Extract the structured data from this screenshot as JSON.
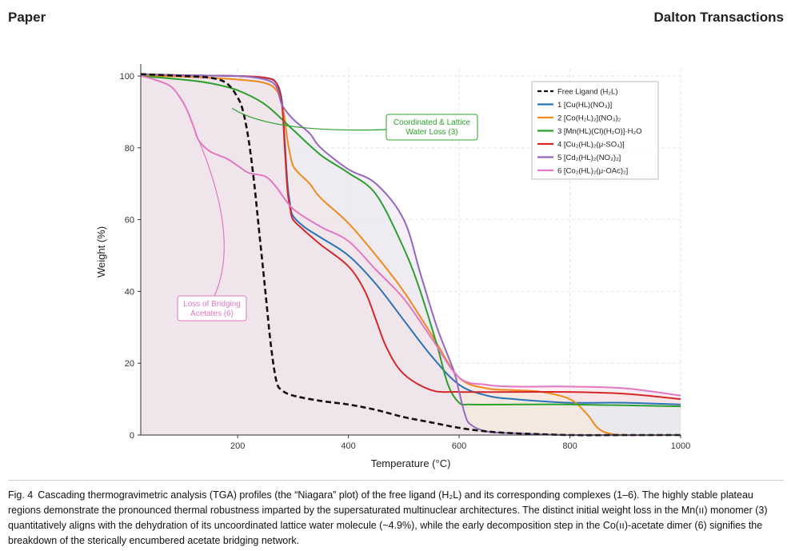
{
  "header": {
    "left": "Paper",
    "right": "Dalton Transactions"
  },
  "chart_data": {
    "type": "line",
    "title": "",
    "xlabel": "Temperature (°C)",
    "ylabel": "Weight (%)",
    "xlim": [
      25,
      1000
    ],
    "ylim": [
      0,
      102
    ],
    "xticks": [
      200,
      400,
      600,
      800,
      1000
    ],
    "yticks": [
      0,
      20,
      40,
      60,
      80,
      100
    ],
    "grid": true,
    "legend_position": "top-right",
    "series": [
      {
        "name": "Free Ligand (H₂L)",
        "color": "#111111",
        "dashed": true,
        "fill": "#d5c3c5",
        "x": [
          25,
          100,
          150,
          180,
          200,
          210,
          220,
          230,
          240,
          250,
          260,
          270,
          280,
          300,
          350,
          400,
          450,
          500,
          550,
          600,
          650,
          700,
          800,
          900,
          1000
        ],
        "y": [
          100.5,
          100,
          99.5,
          98,
          94,
          90,
          82,
          70,
          55,
          40,
          25,
          15,
          12.5,
          11,
          9.5,
          8.5,
          7,
          5,
          3.5,
          2,
          1,
          0.5,
          0,
          0,
          0
        ]
      },
      {
        "name": "1 [Cu(HL)(NO₃)]",
        "color": "#2a73b8",
        "dashed": false,
        "fill": "#e2edf6",
        "x": [
          25,
          100,
          200,
          250,
          270,
          280,
          285,
          290,
          295,
          300,
          320,
          350,
          400,
          450,
          500,
          550,
          600,
          650,
          700,
          800,
          900,
          1000
        ],
        "y": [
          100.5,
          100.2,
          100,
          99.5,
          98,
          93,
          82,
          70,
          64,
          61,
          58,
          55,
          50,
          42,
          32,
          22,
          14,
          11,
          10,
          9,
          9,
          8.5
        ]
      },
      {
        "name": "2 [Co(H₂L)₂](NO₃)₂",
        "color": "#ef8a1e",
        "dashed": false,
        "fill": "#fbe9d6",
        "x": [
          25,
          100,
          200,
          250,
          270,
          280,
          285,
          290,
          295,
          300,
          310,
          330,
          350,
          400,
          450,
          500,
          550,
          600,
          650,
          700,
          750,
          800,
          830,
          850,
          870,
          900,
          1000
        ],
        "y": [
          100,
          99.8,
          99,
          98,
          96,
          92,
          88,
          82,
          78,
          75,
          73,
          70,
          66,
          59,
          50,
          40,
          28,
          16,
          13,
          12.5,
          12,
          10,
          6,
          2,
          0.5,
          0,
          0
        ]
      },
      {
        "name": "3 [Mn(HL)(Cl)(H₂O)]·H₂O",
        "color": "#2ca02c",
        "dashed": false,
        "fill": "#e3f1e3",
        "x": [
          25,
          100,
          150,
          200,
          250,
          300,
          350,
          400,
          450,
          500,
          530,
          560,
          580,
          600,
          620,
          700,
          800,
          1000
        ],
        "y": [
          100,
          99,
          98,
          96,
          92,
          85,
          78,
          73,
          67,
          52,
          40,
          25,
          14,
          9,
          8.5,
          8.5,
          8.5,
          8
        ]
      },
      {
        "name": "4 [Cu₂(HL)₂(μ-SO₄)]",
        "color": "#d62728",
        "dashed": false,
        "fill": "#f7dcdc",
        "x": [
          25,
          100,
          200,
          250,
          270,
          280,
          285,
          290,
          295,
          300,
          320,
          350,
          400,
          430,
          450,
          470,
          500,
          550,
          600,
          700,
          800,
          900,
          1000
        ],
        "y": [
          100.5,
          100.2,
          100,
          99.5,
          98,
          92,
          80,
          68,
          63,
          60,
          57,
          53,
          47,
          40,
          32,
          24,
          17,
          12.5,
          12,
          12,
          12,
          11.5,
          10
        ]
      },
      {
        "name": "5 [Cd₂(HL)₂(NO₃)₂]",
        "color": "#9467bd",
        "dashed": false,
        "fill": "#ece2f4",
        "x": [
          25,
          100,
          200,
          250,
          270,
          280,
          300,
          330,
          350,
          400,
          450,
          500,
          530,
          560,
          590,
          600,
          610,
          620,
          650,
          700,
          800,
          1000
        ],
        "y": [
          100.5,
          100.2,
          100,
          99,
          97,
          92,
          88,
          84,
          80,
          74,
          70,
          60,
          45,
          30,
          18,
          12,
          6,
          3,
          1,
          0.5,
          0,
          0
        ]
      },
      {
        "name": "6 [Co₂(HL)₂(μ-OAc)₂]",
        "color": "#e377c2",
        "dashed": false,
        "fill": "#f8e1ef",
        "x": [
          25,
          50,
          80,
          100,
          110,
          120,
          130,
          150,
          180,
          200,
          220,
          250,
          270,
          300,
          350,
          400,
          450,
          500,
          550,
          600,
          650,
          700,
          800,
          900,
          1000
        ],
        "y": [
          100,
          99,
          97,
          93,
          90,
          86,
          82,
          79,
          77,
          75,
          73,
          72,
          69,
          63,
          58,
          54,
          46,
          38,
          27,
          16,
          14,
          13.5,
          13.5,
          13,
          11
        ]
      }
    ],
    "annotations": [
      {
        "text": "Coordinated & Lattice Water Loss (3)",
        "color": "#2ca02c"
      },
      {
        "text": "Loss of Bridging Acetates (6)",
        "color": "#e377c2"
      }
    ]
  },
  "caption": {
    "label": "Fig. 4",
    "text": "Cascading thermogravimetric analysis (TGA) profiles (the “Niagara” plot) of the free ligand (H₂L) and its corresponding complexes (1–6). The highly stable plateau regions demonstrate the pronounced thermal robustness imparted by the supersaturated multinuclear architectures. The distinct initial weight loss in the Mn(ıı) monomer (3) quantitatively aligns with the dehydration of its uncoordinated lattice water molecule (~4.9%), while the early decomposition step in the Co(ıı)-acetate dimer (6) signifies the breakdown of the sterically encumbered acetate bridging network."
  }
}
